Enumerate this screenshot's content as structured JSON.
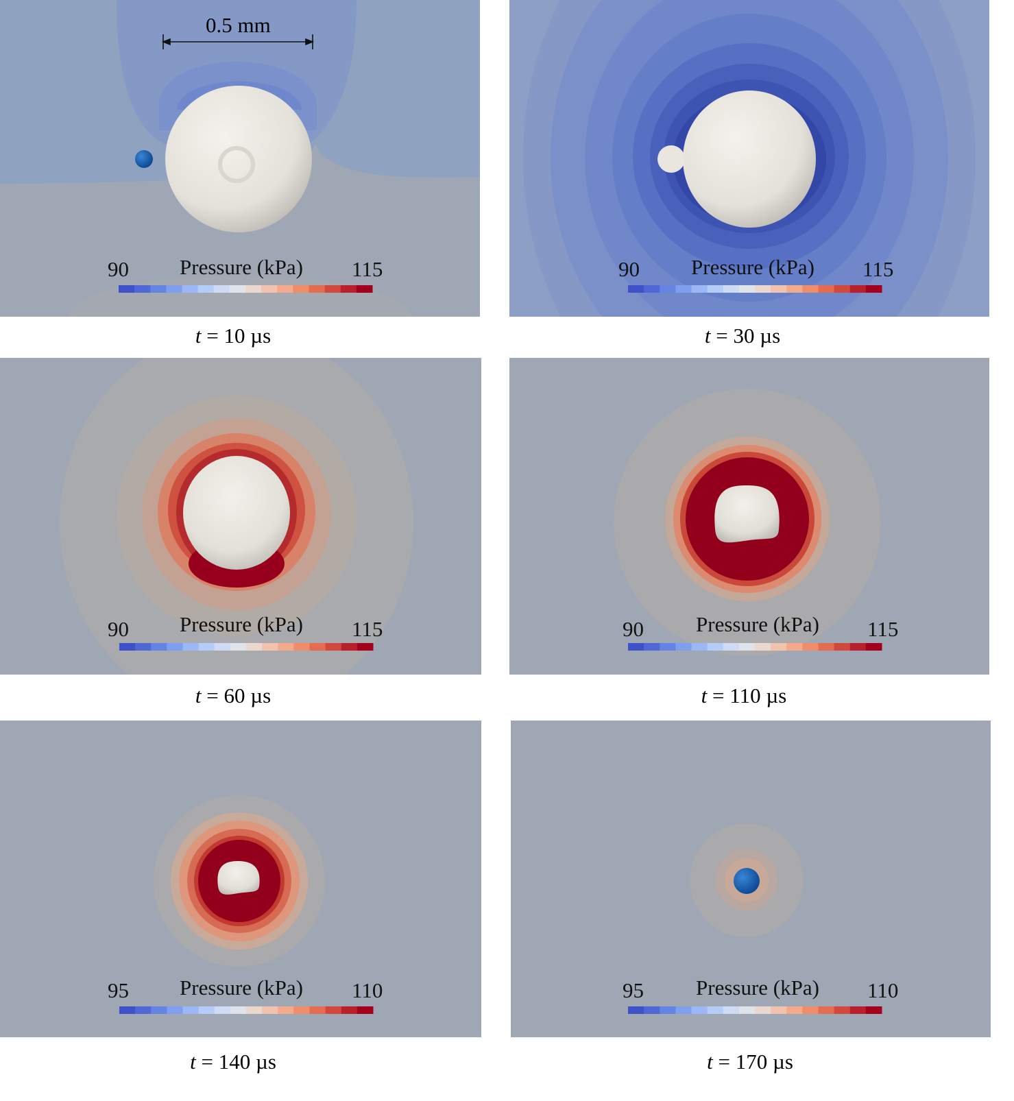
{
  "scale_bar": {
    "label": "0.5 mm"
  },
  "colorbar_title": "Pressure (kPa)",
  "colorbar_colors": [
    "#3f51c8",
    "#5068d6",
    "#6484e3",
    "#7f9fee",
    "#9bb7f5",
    "#b6ccf8",
    "#cfdbf5",
    "#dfe3ea",
    "#ead8cf",
    "#f1c2ae",
    "#f3a98b",
    "#ef8d6b",
    "#e46d51",
    "#d2483c",
    "#b8202c",
    "#a3001e"
  ],
  "panels": [
    {
      "id": "p1",
      "time_var": "t",
      "time_eq": "=",
      "time_value": "10",
      "time_unit": "µs",
      "cbar_min": "90",
      "cbar_max": "115"
    },
    {
      "id": "p2",
      "time_var": "t",
      "time_eq": "=",
      "time_value": "30",
      "time_unit": "µs",
      "cbar_min": "90",
      "cbar_max": "115"
    },
    {
      "id": "p3",
      "time_var": "t",
      "time_eq": "=",
      "time_value": "60",
      "time_unit": "µs",
      "cbar_min": "90",
      "cbar_max": "115"
    },
    {
      "id": "p4",
      "time_var": "t",
      "time_eq": "=",
      "time_value": "110",
      "time_unit": "µs",
      "cbar_min": "90",
      "cbar_max": "115"
    },
    {
      "id": "p5",
      "time_var": "t",
      "time_eq": "=",
      "time_value": "140",
      "time_unit": "µs",
      "cbar_min": "95",
      "cbar_max": "110"
    },
    {
      "id": "p6",
      "time_var": "t",
      "time_eq": "=",
      "time_value": "170",
      "time_unit": "µs",
      "cbar_min": "95",
      "cbar_max": "110"
    }
  ],
  "colors": {
    "background_gray": "#9ea7b3",
    "bubble_white": "#eceae3",
    "high_pressure_red": "#92001c",
    "low_pressure_blue": "#3146a8",
    "small_bubble_blue": "#1f63b4"
  }
}
